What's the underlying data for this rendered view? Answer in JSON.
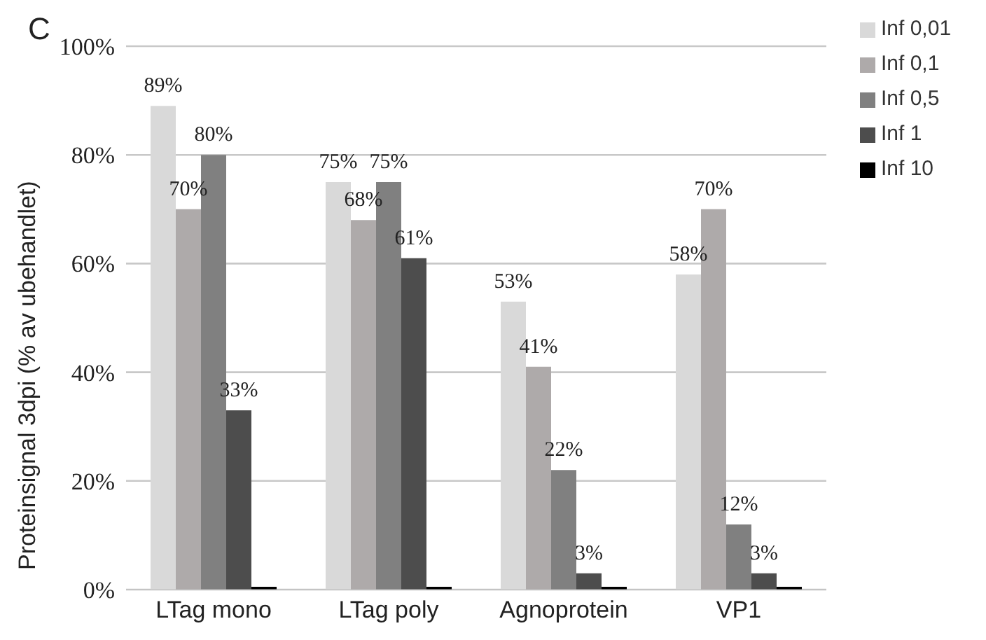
{
  "chart_data": {
    "type": "bar",
    "title": "C",
    "ylabel": "Proteinsignal 3dpi (% av ubehandlet)",
    "categories": [
      "LTag mono",
      "LTag poly",
      "Agnoprotein",
      "VP1"
    ],
    "series": [
      {
        "name": "Inf 0,01",
        "color": "#d9d9d9",
        "values": [
          89,
          75,
          53,
          58
        ],
        "value_labels": [
          "89%",
          "75%",
          "53%",
          "58%"
        ]
      },
      {
        "name": "Inf 0,1",
        "color": "#aeaaaa",
        "values": [
          70,
          68,
          41,
          70
        ],
        "value_labels": [
          "70%",
          "68%",
          "41%",
          "70%"
        ]
      },
      {
        "name": "Inf 0,5",
        "color": "#808080",
        "values": [
          80,
          75,
          22,
          12
        ],
        "value_labels": [
          "80%",
          "75%",
          "22%",
          "12%"
        ]
      },
      {
        "name": "Inf 1",
        "color": "#4d4d4d",
        "values": [
          33,
          61,
          3,
          3
        ],
        "value_labels": [
          "33%",
          "61%",
          "3%",
          "3%"
        ]
      },
      {
        "name": "Inf 10",
        "color": "#000000",
        "values": [
          0.5,
          0.5,
          0.5,
          0.5
        ],
        "value_labels": [
          null,
          null,
          null,
          null
        ]
      }
    ],
    "ylim": [
      0,
      100
    ],
    "yticks": [
      {
        "value": 0,
        "label": "0%"
      },
      {
        "value": 20,
        "label": "20%"
      },
      {
        "value": 40,
        "label": "40%"
      },
      {
        "value": 60,
        "label": "60%"
      },
      {
        "value": 80,
        "label": "80%"
      },
      {
        "value": 100,
        "label": "100%"
      }
    ],
    "grid": "y",
    "legend": "top right"
  }
}
